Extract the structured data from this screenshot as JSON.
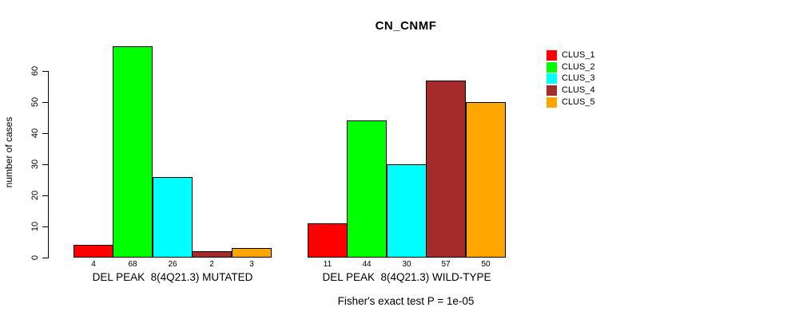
{
  "chart_data": {
    "type": "bar",
    "title": "CN_CNMF",
    "ylabel": "number of cases",
    "xlabel": "",
    "categories": [
      "DEL PEAK  8(4Q21.3) MUTATED",
      "DEL PEAK  8(4Q21.3) WILD-TYPE"
    ],
    "series": [
      {
        "name": "CLUS_1",
        "color": "#ff0000",
        "values": [
          4,
          11
        ]
      },
      {
        "name": "CLUS_2",
        "color": "#00ff00",
        "values": [
          68,
          44
        ]
      },
      {
        "name": "CLUS_3",
        "color": "#00ffff",
        "values": [
          26,
          30
        ]
      },
      {
        "name": "CLUS_4",
        "color": "#a52a2a",
        "values": [
          2,
          57
        ]
      },
      {
        "name": "CLUS_5",
        "color": "#ffa500",
        "values": [
          3,
          50
        ]
      }
    ],
    "bar_value_labels": [
      [
        4,
        68,
        26,
        2,
        3
      ],
      [
        11,
        44,
        30,
        57,
        50
      ]
    ],
    "yticks": [
      0,
      10,
      20,
      30,
      40,
      50,
      60
    ],
    "ylim": [
      0,
      68
    ],
    "grid": false,
    "legend_position": "right",
    "annotation": "Fisher's exact test P = 1e-05"
  }
}
